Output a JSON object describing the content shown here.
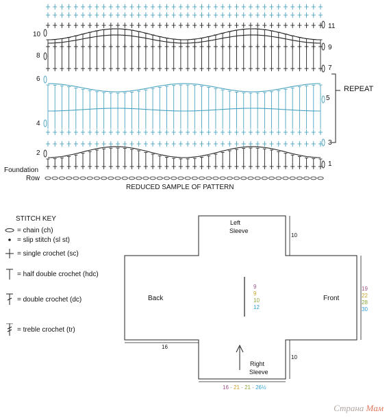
{
  "pattern": {
    "title": "REDUCED SAMPLE OF PATTERN",
    "repeat_label": "REPEAT",
    "foundation_label": "Foundation",
    "row_label": "Row",
    "left_rows": [
      "10",
      "8",
      "6",
      "4",
      "2"
    ],
    "right_rows": [
      "11",
      "9",
      "7",
      "5",
      "3",
      "1"
    ]
  },
  "stitch_key": {
    "title": "STITCH KEY",
    "items": [
      {
        "symbol": "chain-icon",
        "label": "= chain (ch)"
      },
      {
        "symbol": "slip-stitch-icon",
        "label": "= slip stitch (sl st)"
      },
      {
        "symbol": "single-crochet-icon",
        "label": "= single crochet (sc)"
      },
      {
        "symbol": "half-double-crochet-icon",
        "label": "= half double crochet (hdc)"
      },
      {
        "symbol": "double-crochet-icon",
        "label": "= double crochet (dc)"
      },
      {
        "symbol": "treble-crochet-icon",
        "label": "= treble crochet (tr)"
      }
    ]
  },
  "schematic": {
    "left_sleeve": [
      "Left",
      "Sleeve"
    ],
    "right_sleeve": [
      "Right",
      "Sleeve"
    ],
    "back": "Back",
    "front": "Front",
    "sleeve_len_top": "10",
    "sleeve_len_bottom": "10",
    "bottom_width": "16",
    "center_sizes": [
      "9",
      "9",
      "10",
      "12"
    ],
    "right_sizes": [
      "19",
      "22",
      "28",
      "30"
    ],
    "sleeve_width_sizes": [
      "16",
      "21",
      "21",
      "26½"
    ],
    "size_colors": [
      "#9b4f86",
      "#c8a12a",
      "#8aa63a",
      "#2f9fd4"
    ]
  },
  "colors": {
    "black_stitch": "#222222",
    "blue_stitch": "#4aa3c0"
  },
  "watermark": {
    "text_a": "Страна",
    "text_b": "Мам"
  }
}
